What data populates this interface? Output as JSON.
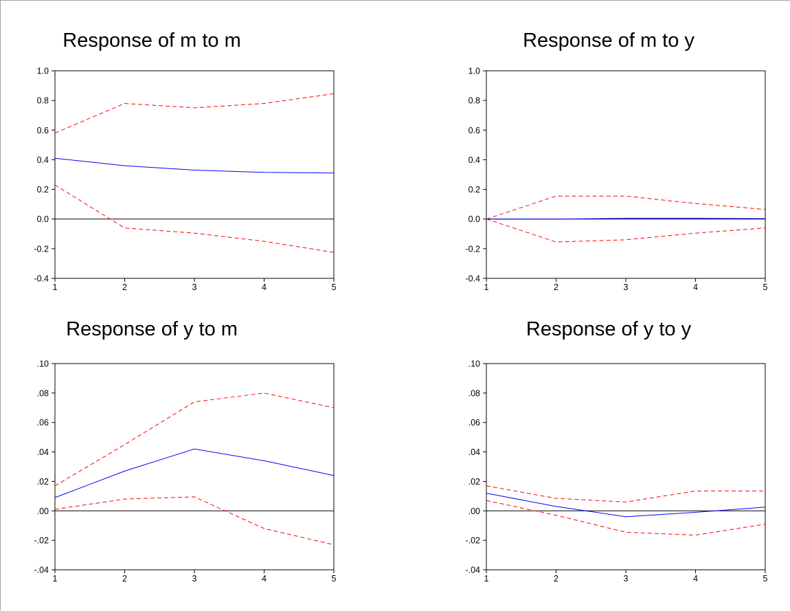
{
  "chart_data": [
    {
      "type": "line",
      "title": "Response of m to m",
      "x": [
        1,
        2,
        3,
        4,
        5
      ],
      "ylim": [
        -0.4,
        1.0
      ],
      "yticks": [
        -0.4,
        -0.2,
        0.0,
        0.2,
        0.4,
        0.6,
        0.8,
        1.0
      ],
      "ytick_labels": [
        "-0.4",
        "-0.2",
        "0.0",
        "0.2",
        "0.4",
        "0.6",
        "0.8",
        "1.0"
      ],
      "xtick_labels": [
        "1",
        "2",
        "3",
        "4",
        "5"
      ],
      "series": [
        {
          "role": "response",
          "color": "#0000ff",
          "style": "solid",
          "values": [
            0.41,
            0.36,
            0.33,
            0.315,
            0.31
          ]
        },
        {
          "role": "upper-band",
          "color": "#ff0000",
          "style": "dashed",
          "values": [
            0.58,
            0.78,
            0.75,
            0.78,
            0.845
          ]
        },
        {
          "role": "lower-band",
          "color": "#ff0000",
          "style": "dashed",
          "values": [
            0.23,
            -0.06,
            -0.095,
            -0.15,
            -0.225
          ]
        }
      ]
    },
    {
      "type": "line",
      "title": "Response of m to y",
      "x": [
        1,
        2,
        3,
        4,
        5
      ],
      "ylim": [
        -0.4,
        1.0
      ],
      "yticks": [
        -0.4,
        -0.2,
        0.0,
        0.2,
        0.4,
        0.6,
        0.8,
        1.0
      ],
      "ytick_labels": [
        "-0.4",
        "-0.2",
        "0.0",
        "0.2",
        "0.4",
        "0.6",
        "0.8",
        "1.0"
      ],
      "xtick_labels": [
        "1",
        "2",
        "3",
        "4",
        "5"
      ],
      "series": [
        {
          "role": "response",
          "color": "#0000ff",
          "style": "solid",
          "values": [
            0.0,
            0.0,
            0.005,
            0.005,
            0.003
          ]
        },
        {
          "role": "upper-band",
          "color": "#ff0000",
          "style": "dashed",
          "values": [
            0.0,
            0.155,
            0.155,
            0.105,
            0.065
          ]
        },
        {
          "role": "lower-band",
          "color": "#ff0000",
          "style": "dashed",
          "values": [
            0.0,
            -0.155,
            -0.14,
            -0.095,
            -0.06
          ]
        }
      ]
    },
    {
      "type": "line",
      "title": "Response of y to m",
      "x": [
        1,
        2,
        3,
        4,
        5
      ],
      "ylim": [
        -0.04,
        0.1
      ],
      "yticks": [
        -0.04,
        -0.02,
        0.0,
        0.02,
        0.04,
        0.06,
        0.08,
        0.1
      ],
      "ytick_labels": [
        "-.04",
        "-.02",
        ".00",
        ".02",
        ".04",
        ".06",
        ".08",
        ".10"
      ],
      "xtick_labels": [
        "1",
        "2",
        "3",
        "4",
        "5"
      ],
      "series": [
        {
          "role": "response",
          "color": "#0000ff",
          "style": "solid",
          "values": [
            0.009,
            0.027,
            0.042,
            0.034,
            0.024
          ]
        },
        {
          "role": "upper-band",
          "color": "#ff0000",
          "style": "dashed",
          "values": [
            0.017,
            0.045,
            0.074,
            0.08,
            0.07
          ]
        },
        {
          "role": "lower-band",
          "color": "#ff0000",
          "style": "dashed",
          "values": [
            0.001,
            0.008,
            0.0095,
            -0.012,
            -0.023
          ]
        }
      ]
    },
    {
      "type": "line",
      "title": "Response of y to y",
      "x": [
        1,
        2,
        3,
        4,
        5
      ],
      "ylim": [
        -0.04,
        0.1
      ],
      "yticks": [
        -0.04,
        -0.02,
        0.0,
        0.02,
        0.04,
        0.06,
        0.08,
        0.1
      ],
      "ytick_labels": [
        "-.04",
        "-.02",
        ".00",
        ".02",
        ".04",
        ".06",
        ".08",
        ".10"
      ],
      "xtick_labels": [
        "1",
        "2",
        "3",
        "4",
        "5"
      ],
      "series": [
        {
          "role": "response",
          "color": "#0000ff",
          "style": "solid",
          "values": [
            0.012,
            0.003,
            -0.004,
            -0.001,
            0.0025
          ]
        },
        {
          "role": "upper-band",
          "color": "#ff0000",
          "style": "dashed",
          "values": [
            0.017,
            0.0085,
            0.006,
            0.0135,
            0.0135
          ]
        },
        {
          "role": "lower-band",
          "color": "#ff0000",
          "style": "dashed",
          "values": [
            0.007,
            -0.003,
            -0.0145,
            -0.0165,
            -0.009
          ]
        }
      ]
    }
  ]
}
